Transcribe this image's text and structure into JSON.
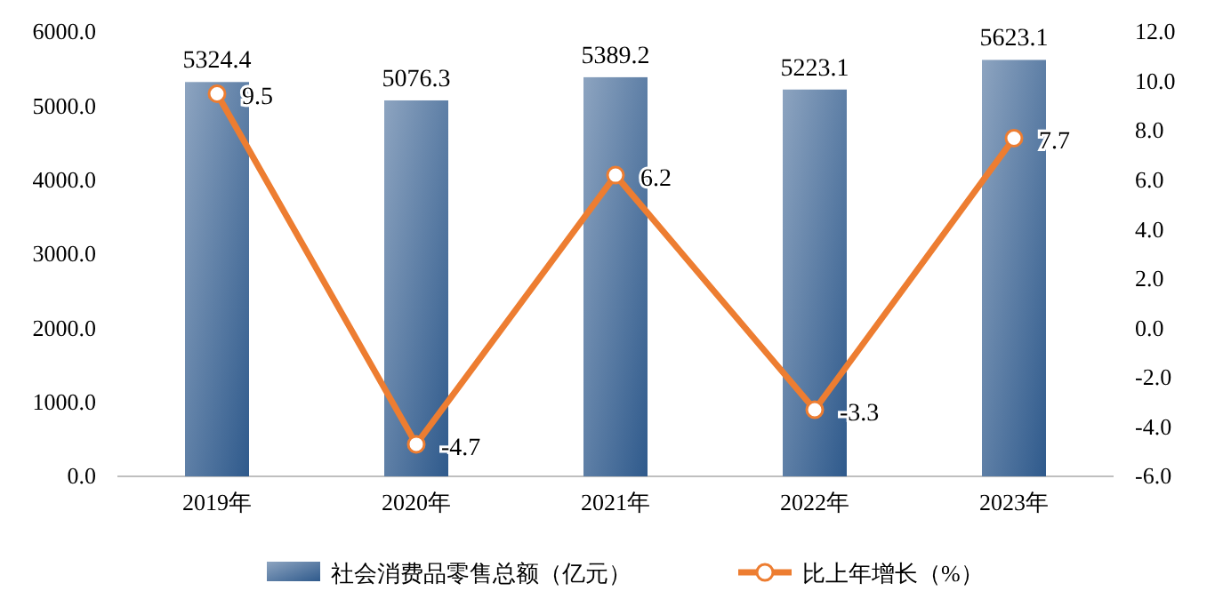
{
  "chart_data": {
    "type": "bar",
    "categories": [
      "2019年",
      "2020年",
      "2021年",
      "2022年",
      "2023年"
    ],
    "series": [
      {
        "name": "社会消费品零售总额（亿元）",
        "color": "#2f5a8c",
        "values": [
          5324.4,
          5076.3,
          5389.2,
          5223.1,
          5623.1
        ]
      },
      {
        "name": "比上年增长（%）",
        "type": "line",
        "axis": "y2",
        "color": "#ed7d31",
        "marker": "circle",
        "values": [
          9.5,
          -4.7,
          6.2,
          -3.3,
          7.7
        ]
      }
    ],
    "ylim": [
      0,
      6000
    ],
    "yticks": [
      {
        "value": 0,
        "label": "0.0"
      },
      {
        "value": 1000,
        "label": "1000.0"
      },
      {
        "value": 2000,
        "label": "2000.0"
      },
      {
        "value": 3000,
        "label": "3000.0"
      },
      {
        "value": 4000,
        "label": "4000.0"
      },
      {
        "value": 5000,
        "label": "5000.0"
      },
      {
        "value": 6000,
        "label": "6000.0"
      }
    ],
    "y2lim": [
      -6,
      12
    ],
    "y2ticks": [
      {
        "value": -6,
        "label": "-6.0"
      },
      {
        "value": -4,
        "label": "-4.0"
      },
      {
        "value": -2,
        "label": "-2.0"
      },
      {
        "value": 0,
        "label": "0.0"
      },
      {
        "value": 2,
        "label": "2.0"
      },
      {
        "value": 4,
        "label": "4.0"
      },
      {
        "value": 6,
        "label": "6.0"
      },
      {
        "value": 8,
        "label": "8.0"
      },
      {
        "value": 10,
        "label": "10.0"
      },
      {
        "value": 12,
        "label": "12.0"
      }
    ],
    "data_labels": true,
    "legend": "bottom",
    "grid": false
  }
}
